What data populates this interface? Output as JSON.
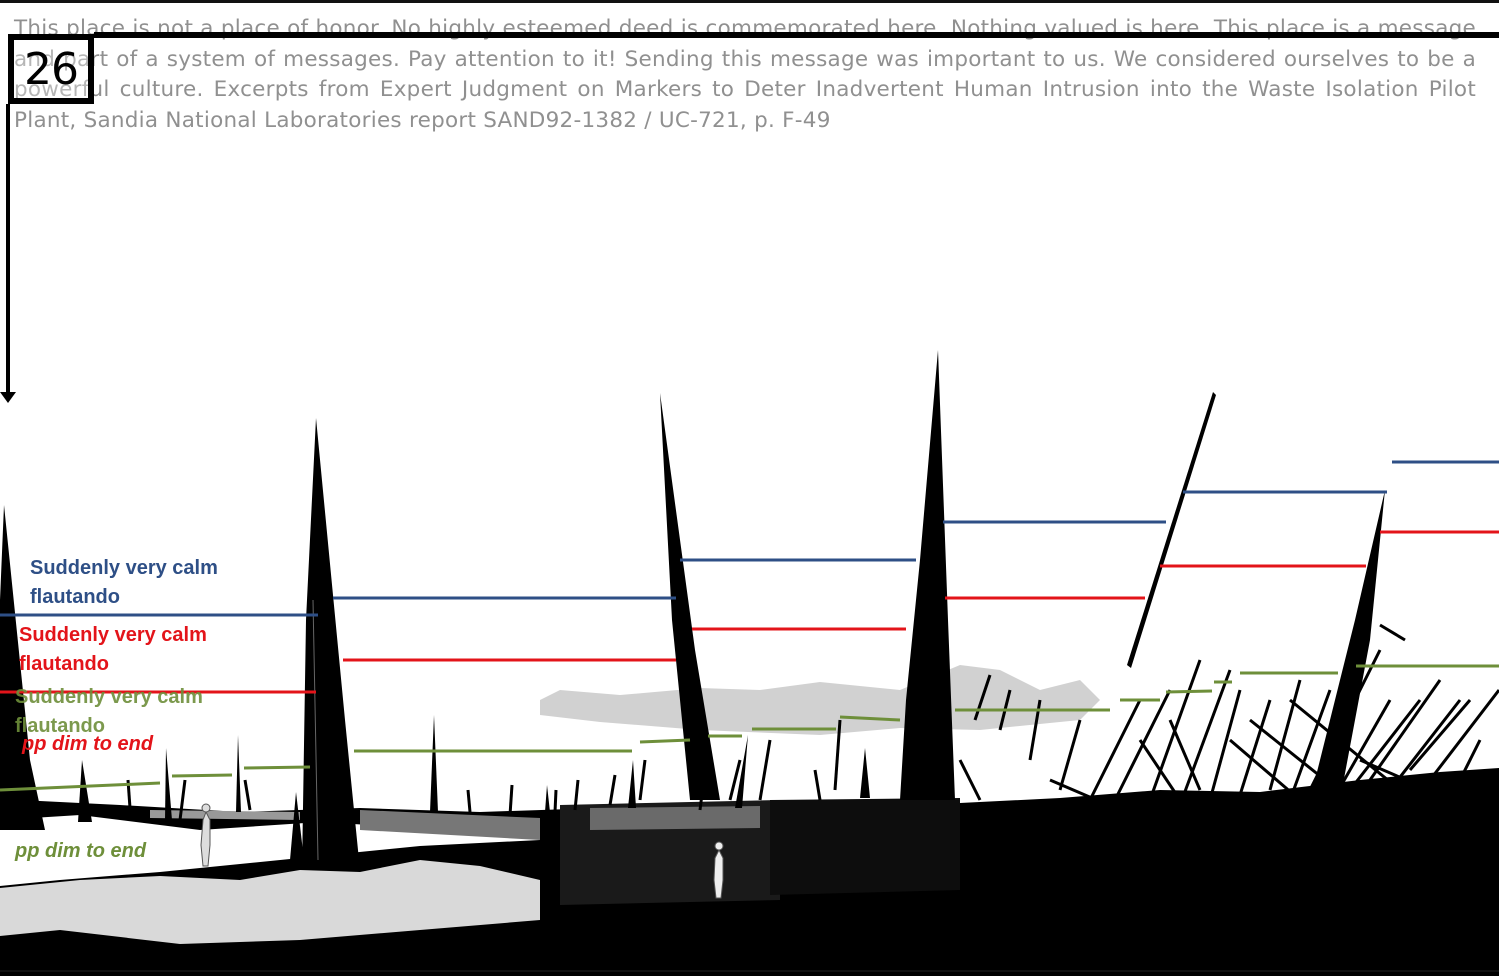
{
  "page": {
    "number": "26",
    "quote": "This place is not a place of honor. No highly esteemed deed is commemorated here. Nothing valued is here. This place is a message and part of a system of messages. Pay attention to it! Sending this message was important to us. We considered ourselves to be a powerful culture. Excerpts from Expert Judgment on Markers to Deter Inadvertent Human Intrusion into the Waste Isolation Pilot Plant, Sandia National Laboratories report SAND92-1382 / UC-721, p. F-49"
  },
  "annotations": {
    "blue_text": "Suddenly very calm\nflautando",
    "red_text": "Suddenly very calm\nflautando",
    "green_text": "Suddenly very calm\nflautando",
    "red_dynamic": "pp dim to end",
    "green_dynamic": "pp dim to end"
  },
  "colors": {
    "blue": "#2e4f86",
    "red": "#e3141a",
    "green": "#6e8f3a",
    "quote_gray": "#909090",
    "ink": "#000000"
  },
  "icons": {
    "arrow": "arrow-down-icon"
  }
}
